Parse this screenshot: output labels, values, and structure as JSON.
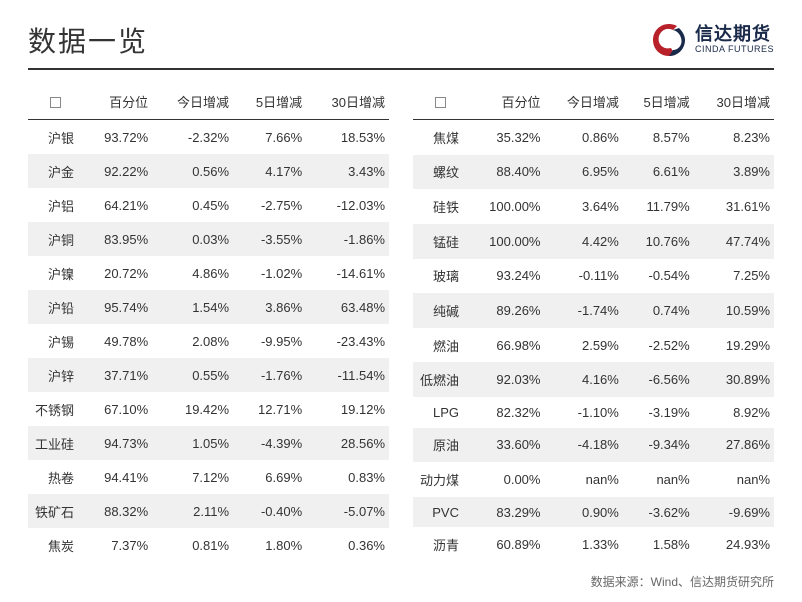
{
  "title": "数据一览",
  "logo": {
    "cn": "信达期货",
    "en": "CINDA FUTURES"
  },
  "columns": [
    "百分位",
    "今日增减",
    "5日增减",
    "30日增减"
  ],
  "source": "数据来源：Wind、信达期货研究所",
  "colors": {
    "text": "#333333",
    "highlight": "#d32020",
    "row_alt": "#f0f0f0",
    "background": "#ffffff",
    "logo_navy": "#1a2a4a",
    "logo_red": "#b8202a"
  },
  "left": [
    {
      "name": "沪银",
      "pct": "93.72%",
      "pct_red": true,
      "d1": "-2.32%",
      "d5": "7.66%",
      "d30": "18.53%"
    },
    {
      "name": "沪金",
      "pct": "92.22%",
      "pct_red": true,
      "d1": "0.56%",
      "d5": "4.17%",
      "d30": "3.43%"
    },
    {
      "name": "沪铝",
      "pct": "64.21%",
      "d1": "0.45%",
      "d5": "-2.75%",
      "d30": "-12.03%"
    },
    {
      "name": "沪铜",
      "pct": "83.95%",
      "d1": "0.03%",
      "d5": "-3.55%",
      "d30": "-1.86%"
    },
    {
      "name": "沪镍",
      "pct": "20.72%",
      "d1": "4.86%",
      "d5": "-1.02%",
      "d30": "-14.61%"
    },
    {
      "name": "沪铅",
      "pct": "95.74%",
      "pct_red": true,
      "d1": "1.54%",
      "d5": "3.86%",
      "d30": "63.48%",
      "d30_red": true
    },
    {
      "name": "沪锡",
      "pct": "49.78%",
      "d1": "2.08%",
      "d5": "-9.95%",
      "d30": "-23.43%"
    },
    {
      "name": "沪锌",
      "pct": "37.71%",
      "d1": "0.55%",
      "d5": "-1.76%",
      "d30": "-11.54%"
    },
    {
      "name": "不锈钢",
      "pct": "67.10%",
      "d1": "19.42%",
      "d1_red": true,
      "d5": "12.71%",
      "d30": "19.12%"
    },
    {
      "name": "工业硅",
      "pct": "94.73%",
      "pct_red": true,
      "d1": "1.05%",
      "d5": "-4.39%",
      "d30": "28.56%"
    },
    {
      "name": "热卷",
      "pct": "94.41%",
      "pct_red": true,
      "d1": "7.12%",
      "d5": "6.69%",
      "d30": "0.83%"
    },
    {
      "name": "铁矿石",
      "pct": "88.32%",
      "d1": "2.11%",
      "d5": "-0.40%",
      "d30": "-5.07%"
    },
    {
      "name": "焦炭",
      "pct": "7.37%",
      "d1": "0.81%",
      "d5": "1.80%",
      "d30": "0.36%"
    }
  ],
  "right": [
    {
      "name": "焦煤",
      "pct": "35.32%",
      "d1": "0.86%",
      "d5": "8.57%",
      "d30": "8.23%"
    },
    {
      "name": "螺纹",
      "pct": "88.40%",
      "d1": "6.95%",
      "d5": "6.61%",
      "d30": "3.89%"
    },
    {
      "name": "硅铁",
      "pct": "100.00%",
      "pct_red": true,
      "d1": "3.64%",
      "d5": "11.79%",
      "d30": "31.61%"
    },
    {
      "name": "锰硅",
      "pct": "100.00%",
      "pct_red": true,
      "d1": "4.42%",
      "d5": "10.76%",
      "d30": "47.74%",
      "d30_red": true
    },
    {
      "name": "玻璃",
      "pct": "93.24%",
      "pct_red": true,
      "d1": "-0.11%",
      "d5": "-0.54%",
      "d30": "7.25%"
    },
    {
      "name": "纯碱",
      "pct": "89.26%",
      "d1": "-1.74%",
      "d5": "0.74%",
      "d30": "10.59%"
    },
    {
      "name": "燃油",
      "pct": "66.98%",
      "d1": "2.59%",
      "d5": "-2.52%",
      "d30": "19.29%"
    },
    {
      "name": "低燃油",
      "pct": "92.03%",
      "pct_red": true,
      "d1": "4.16%",
      "d5": "-6.56%",
      "d30": "30.89%"
    },
    {
      "name": "LPG",
      "pct": "82.32%",
      "d1": "-1.10%",
      "d5": "-3.19%",
      "d30": "8.92%"
    },
    {
      "name": "原油",
      "pct": "33.60%",
      "d1": "-4.18%",
      "d5": "-9.34%",
      "d30": "27.86%"
    },
    {
      "name": "动力煤",
      "pct": "0.00%",
      "d1": "nan%",
      "d5": "nan%",
      "d30": "nan%"
    },
    {
      "name": "PVC",
      "pct": "83.29%",
      "d1": "0.90%",
      "d5": "-3.62%",
      "d30": "-9.69%"
    },
    {
      "name": "沥青",
      "pct": "60.89%",
      "d1": "1.33%",
      "d5": "1.58%",
      "d30": "24.93%"
    }
  ]
}
